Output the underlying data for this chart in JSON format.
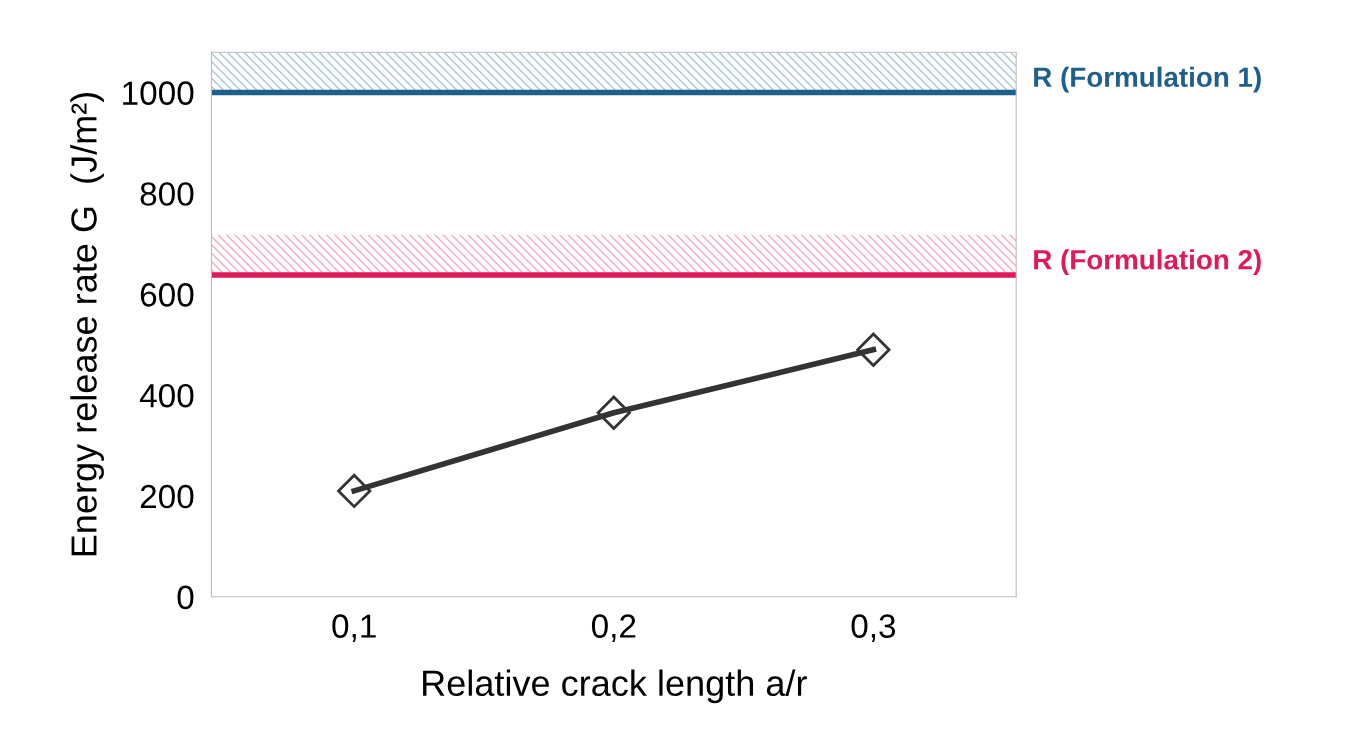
{
  "chart_data": {
    "type": "line",
    "xlabel": "Relative crack length a/r",
    "ylabel": "Energy release rate G  (J/m²)",
    "categories": [
      "0,1",
      "0,2",
      "0,3"
    ],
    "series": [
      {
        "color": "#333333",
        "values": [
          210,
          365,
          490
        ]
      }
    ],
    "marker": "diamond",
    "line_style": "solid",
    "ylim": [
      0,
      1080
    ],
    "yticks": [
      0,
      200,
      400,
      600,
      800,
      1000
    ],
    "grid": false,
    "legend": false,
    "ref_lines": [
      {
        "axis": "y",
        "value": 1000,
        "label": "R (Formulation 1)",
        "color": "#1f5f8b"
      },
      {
        "axis": "y",
        "value": 638,
        "label": "R (Formulation 2)",
        "color": "#e0195a"
      }
    ],
    "bands": [
      {
        "axis": "y",
        "from": 1000,
        "to": 1080,
        "color": "#1f5f8b"
      },
      {
        "axis": "y",
        "from": 638,
        "to": 718,
        "color": "#e0195a"
      }
    ]
  }
}
